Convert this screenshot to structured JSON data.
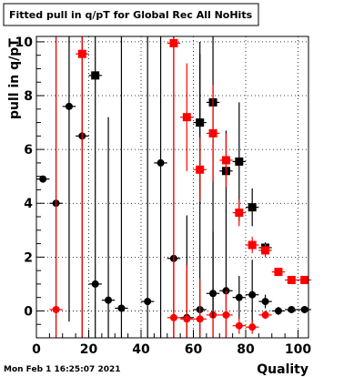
{
  "chart_data": {
    "type": "scatter",
    "title": "Fitted pull in q/pT for Global Rec All NoHits",
    "xlabel": "Quality",
    "ylabel": "pull in q/pT",
    "xlim": [
      0,
      104
    ],
    "ylim": [
      -1,
      10.2
    ],
    "xticks": [
      0,
      20,
      40,
      60,
      80,
      100
    ],
    "yticks": [
      0,
      2,
      4,
      6,
      8,
      10
    ],
    "grid": true,
    "timestamp": "Mon Feb  1 16:25:07 2021",
    "colors": {
      "series_black": "#000000",
      "series_red": "#ff0000"
    },
    "series": [
      {
        "marker": "circle",
        "color": "#000000",
        "points": [
          {
            "x": 2.5,
            "y": 4.9,
            "yerr": 0,
            "xerr": 2.5
          },
          {
            "x": 7.5,
            "y": 4.0,
            "yerr": 7,
            "xerr": 2.5
          },
          {
            "x": 12.5,
            "y": 7.6,
            "yerr": 8,
            "xerr": 2.5
          },
          {
            "x": 17.5,
            "y": 6.5,
            "yerr": 8,
            "xerr": 2.5
          },
          {
            "x": 22.5,
            "y": 1.0,
            "yerr": 11,
            "xerr": 2.5
          },
          {
            "x": 27.5,
            "y": 0.4,
            "yerr": 6.8,
            "xerr": 2.5
          },
          {
            "x": 32.5,
            "y": 0.1,
            "yerr": 11,
            "xerr": 2.5
          },
          {
            "x": 42.5,
            "y": 0.35,
            "yerr": 11,
            "xerr": 2.5
          },
          {
            "x": 47.5,
            "y": 5.5,
            "yerr": 11,
            "xerr": 2.5
          },
          {
            "x": 52.5,
            "y": 1.95,
            "yerr": 11,
            "xerr": 2.5
          },
          {
            "x": 57.5,
            "y": -0.25,
            "yerr": 3.8,
            "xerr": 2.5
          },
          {
            "x": 62.5,
            "y": 0.05,
            "yerr": 9.5,
            "xerr": 2.5
          },
          {
            "x": 67.5,
            "y": 0.65,
            "yerr": 2.3,
            "xerr": 2.5
          },
          {
            "x": 72.5,
            "y": 0.75,
            "yerr": 3.0,
            "xerr": 2.5
          },
          {
            "x": 77.5,
            "y": 0.5,
            "yerr": 0.8,
            "xerr": 2.5
          },
          {
            "x": 82.5,
            "y": 0.6,
            "yerr": 1.3,
            "xerr": 2.5
          },
          {
            "x": 87.5,
            "y": 0.35,
            "yerr": 0.25,
            "xerr": 2.5
          },
          {
            "x": 92.5,
            "y": 0.0,
            "yerr": 0.15,
            "xerr": 2.5
          },
          {
            "x": 97.5,
            "y": 0.05,
            "yerr": 0.1,
            "xerr": 2.5
          },
          {
            "x": 102.5,
            "y": 0.05,
            "yerr": 0.1,
            "xerr": 2.5
          }
        ]
      },
      {
        "marker": "circle",
        "color": "#ff0000",
        "points": [
          {
            "x": 7.5,
            "y": 0.05,
            "yerr": 11,
            "xerr": 2.5
          },
          {
            "x": 52.5,
            "y": -0.25,
            "yerr": 2.2,
            "xerr": 2.5
          },
          {
            "x": 57.5,
            "y": -0.3,
            "yerr": 2.0,
            "xerr": 2.5
          },
          {
            "x": 62.5,
            "y": -0.3,
            "yerr": 1.5,
            "xerr": 2.5
          },
          {
            "x": 67.5,
            "y": -0.15,
            "yerr": 1.0,
            "xerr": 2.5
          },
          {
            "x": 72.5,
            "y": -0.15,
            "yerr": 0.9,
            "xerr": 2.5
          },
          {
            "x": 77.5,
            "y": -0.55,
            "yerr": 0.3,
            "xerr": 2.5
          },
          {
            "x": 82.5,
            "y": -0.6,
            "yerr": 0.25,
            "xerr": 2.5
          },
          {
            "x": 87.5,
            "y": -0.15,
            "yerr": 0.15,
            "xerr": 2.5
          }
        ]
      },
      {
        "marker": "square",
        "color": "#000000",
        "points": [
          {
            "x": 22.5,
            "y": 8.75,
            "yerr": 0,
            "xerr": 2.5
          },
          {
            "x": 62.5,
            "y": 7.0,
            "yerr": 3.0,
            "xerr": 2.5
          },
          {
            "x": 67.5,
            "y": 7.75,
            "yerr": 8,
            "xerr": 2.5
          },
          {
            "x": 72.5,
            "y": 5.2,
            "yerr": 1.5,
            "xerr": 2.5
          },
          {
            "x": 77.5,
            "y": 5.55,
            "yerr": 2.2,
            "xerr": 2.5
          },
          {
            "x": 82.5,
            "y": 3.85,
            "yerr": 0.7,
            "xerr": 2.5
          },
          {
            "x": 87.5,
            "y": 2.35,
            "yerr": 0.2,
            "xerr": 2.5
          }
        ]
      },
      {
        "marker": "square",
        "color": "#ff0000",
        "points": [
          {
            "x": 17.5,
            "y": 9.55,
            "yerr": 11,
            "xerr": 2.5
          },
          {
            "x": 52.5,
            "y": 9.95,
            "yerr": 11,
            "xerr": 2.5
          },
          {
            "x": 57.5,
            "y": 7.2,
            "yerr": 2.0,
            "xerr": 2.5
          },
          {
            "x": 62.5,
            "y": 5.25,
            "yerr": 1.2,
            "xerr": 2.5
          },
          {
            "x": 67.5,
            "y": 6.6,
            "yerr": 1.8,
            "xerr": 2.5
          },
          {
            "x": 72.5,
            "y": 5.6,
            "yerr": 1.0,
            "xerr": 2.5
          },
          {
            "x": 77.5,
            "y": 3.65,
            "yerr": 0.5,
            "xerr": 2.5
          },
          {
            "x": 82.5,
            "y": 2.45,
            "yerr": 0.3,
            "xerr": 2.5
          },
          {
            "x": 87.5,
            "y": 2.25,
            "yerr": 0.25,
            "xerr": 2.5
          },
          {
            "x": 92.5,
            "y": 1.45,
            "yerr": 0.15,
            "xerr": 2.5
          },
          {
            "x": 97.5,
            "y": 1.15,
            "yerr": 0.1,
            "xerr": 2.5
          },
          {
            "x": 102.5,
            "y": 1.15,
            "yerr": 0.1,
            "xerr": 2.5
          }
        ]
      }
    ]
  }
}
